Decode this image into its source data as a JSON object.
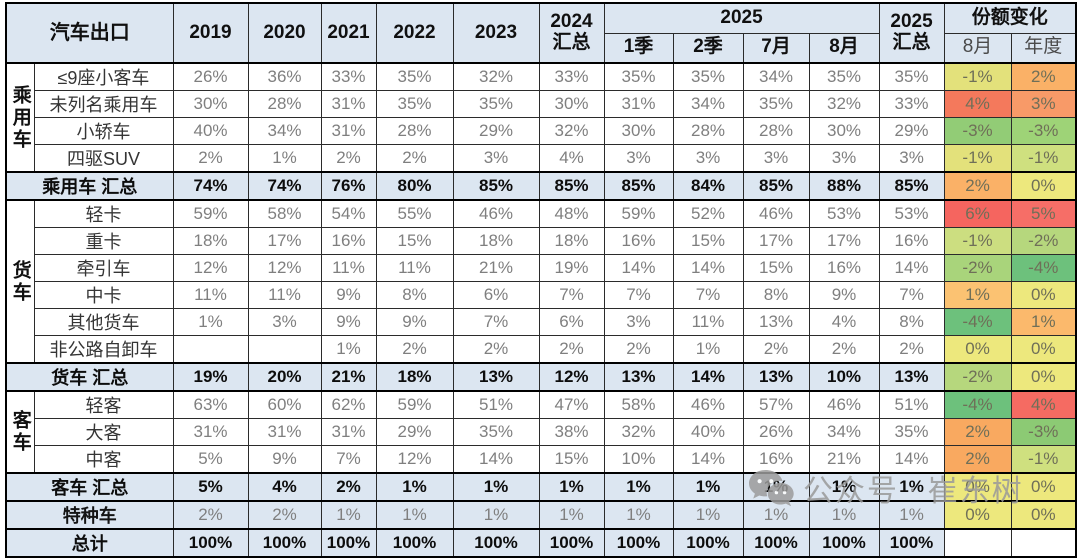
{
  "chart_data": {
    "type": "table",
    "title": "汽车出口",
    "header": {
      "years": [
        "2019",
        "2020",
        "2021",
        "2022",
        "2023"
      ],
      "total2024_line1": "2024",
      "total2024_line2": "汇总",
      "group2025": "2025",
      "sub2025": [
        "1季",
        "2季",
        "7月",
        "8月"
      ],
      "total2025_line1": "2025",
      "total2025_line2": "汇总",
      "share_change": "份额变化",
      "share_subs": [
        "8月",
        "年度"
      ]
    },
    "columns": [
      "2019",
      "2020",
      "2021",
      "2022",
      "2023",
      "2024汇总",
      "2025 1季",
      "2025 2季",
      "2025 7月",
      "2025 8月",
      "2025汇总",
      "份额变化 8月",
      "份额变化 年度"
    ],
    "rows": [
      {
        "kind": "data",
        "group": "乘用车",
        "span": 4,
        "label": "≤9座小客车",
        "values": [
          "26%",
          "36%",
          "33%",
          "35%",
          "32%",
          "33%",
          "35%",
          "35%",
          "34%",
          "35%",
          "35%"
        ],
        "changes": [
          {
            "v": "-1%",
            "bg": "#E3E17B"
          },
          {
            "v": "2%",
            "bg": "#FAB167"
          }
        ]
      },
      {
        "kind": "data",
        "label": "未列名乘用车",
        "values": [
          "30%",
          "28%",
          "31%",
          "35%",
          "35%",
          "30%",
          "31%",
          "34%",
          "35%",
          "32%",
          "33%"
        ],
        "changes": [
          {
            "v": "4%",
            "bg": "#F4795C"
          },
          {
            "v": "3%",
            "bg": "#F89A68"
          }
        ]
      },
      {
        "kind": "data",
        "label": "小轿车",
        "values": [
          "40%",
          "34%",
          "31%",
          "28%",
          "29%",
          "32%",
          "30%",
          "28%",
          "28%",
          "30%",
          "29%"
        ],
        "changes": [
          {
            "v": "-3%",
            "bg": "#92CC76"
          },
          {
            "v": "-3%",
            "bg": "#9ED377"
          }
        ]
      },
      {
        "kind": "data",
        "label": "四驱SUV",
        "values": [
          "2%",
          "1%",
          "2%",
          "2%",
          "3%",
          "4%",
          "3%",
          "3%",
          "3%",
          "3%",
          "3%"
        ],
        "changes": [
          {
            "v": "-1%",
            "bg": "#E3E17B"
          },
          {
            "v": "-1%",
            "bg": "#CFE07F"
          }
        ]
      },
      {
        "kind": "summary",
        "label": "乘用车 汇总",
        "values": [
          "74%",
          "74%",
          "76%",
          "80%",
          "85%",
          "85%",
          "85%",
          "84%",
          "85%",
          "88%",
          "85%"
        ],
        "changes": [
          {
            "v": "2%",
            "bg": "#FAB167"
          },
          {
            "v": "0%",
            "bg": "#EDE87D"
          }
        ]
      },
      {
        "kind": "data",
        "group": "货车",
        "span": 6,
        "label": "轻卡",
        "values": [
          "59%",
          "58%",
          "54%",
          "55%",
          "46%",
          "48%",
          "59%",
          "52%",
          "46%",
          "53%",
          "53%"
        ],
        "changes": [
          {
            "v": "6%",
            "bg": "#F5655F"
          },
          {
            "v": "5%",
            "bg": "#F66E67"
          }
        ]
      },
      {
        "kind": "data",
        "label": "重卡",
        "values": [
          "18%",
          "17%",
          "16%",
          "15%",
          "18%",
          "18%",
          "16%",
          "15%",
          "17%",
          "17%",
          "16%"
        ],
        "changes": [
          {
            "v": "-1%",
            "bg": "#CCDE80"
          },
          {
            "v": "-2%",
            "bg": "#B6D77D"
          }
        ]
      },
      {
        "kind": "data",
        "label": "牵引车",
        "values": [
          "12%",
          "12%",
          "11%",
          "11%",
          "21%",
          "19%",
          "14%",
          "14%",
          "15%",
          "16%",
          "14%"
        ],
        "changes": [
          {
            "v": "-2%",
            "bg": "#A9D47B"
          },
          {
            "v": "-4%",
            "bg": "#6DC17C"
          }
        ]
      },
      {
        "kind": "data",
        "label": "中卡",
        "values": [
          "11%",
          "11%",
          "9%",
          "8%",
          "6%",
          "7%",
          "7%",
          "7%",
          "8%",
          "9%",
          "7%"
        ],
        "changes": [
          {
            "v": "1%",
            "bg": "#FBC272"
          },
          {
            "v": "0%",
            "bg": "#EDE87D"
          }
        ]
      },
      {
        "kind": "data",
        "label": "其他货车",
        "values": [
          "1%",
          "3%",
          "9%",
          "9%",
          "7%",
          "6%",
          "3%",
          "11%",
          "13%",
          "4%",
          "8%"
        ],
        "changes": [
          {
            "v": "-4%",
            "bg": "#6DC17C"
          },
          {
            "v": "1%",
            "bg": "#FBB96C"
          }
        ]
      },
      {
        "kind": "data",
        "label": "非公路自卸车",
        "values": [
          "",
          "",
          "1%",
          "2%",
          "2%",
          "2%",
          "2%",
          "1%",
          "2%",
          "2%",
          "2%"
        ],
        "changes": [
          {
            "v": "0%",
            "bg": "#EDE87D"
          },
          {
            "v": "0%",
            "bg": "#EDE87D"
          }
        ]
      },
      {
        "kind": "summary",
        "label": "货车 汇总",
        "values": [
          "19%",
          "20%",
          "21%",
          "18%",
          "13%",
          "12%",
          "13%",
          "14%",
          "13%",
          "10%",
          "13%"
        ],
        "changes": [
          {
            "v": "-2%",
            "bg": "#B6D77D"
          },
          {
            "v": "0%",
            "bg": "#EDE87D"
          }
        ]
      },
      {
        "kind": "data",
        "group": "客车",
        "span": 3,
        "label": "轻客",
        "values": [
          "63%",
          "60%",
          "62%",
          "59%",
          "51%",
          "47%",
          "58%",
          "46%",
          "57%",
          "46%",
          "51%"
        ],
        "changes": [
          {
            "v": "-4%",
            "bg": "#6DC17C"
          },
          {
            "v": "4%",
            "bg": "#F56B62"
          }
        ]
      },
      {
        "kind": "data",
        "label": "大客",
        "values": [
          "31%",
          "31%",
          "31%",
          "29%",
          "35%",
          "38%",
          "32%",
          "40%",
          "26%",
          "34%",
          "35%"
        ],
        "changes": [
          {
            "v": "2%",
            "bg": "#F9A960"
          },
          {
            "v": "-3%",
            "bg": "#8CCA74"
          }
        ]
      },
      {
        "kind": "data",
        "label": "中客",
        "values": [
          "5%",
          "9%",
          "7%",
          "12%",
          "14%",
          "15%",
          "10%",
          "14%",
          "16%",
          "21%",
          "14%"
        ],
        "changes": [
          {
            "v": "2%",
            "bg": "#F9A960"
          },
          {
            "v": "-1%",
            "bg": "#CFE07F"
          }
        ]
      },
      {
        "kind": "summary",
        "label": "客车 汇总",
        "values": [
          "5%",
          "4%",
          "2%",
          "1%",
          "1%",
          "1%",
          "1%",
          "1%",
          "1%",
          "1%",
          "1%"
        ],
        "changes": [
          {
            "v": "0%",
            "bg": "#EDE87D"
          },
          {
            "v": "0%",
            "bg": "#EDE87D"
          }
        ]
      },
      {
        "kind": "special",
        "label": "特种车",
        "values": [
          "2%",
          "2%",
          "1%",
          "1%",
          "1%",
          "1%",
          "1%",
          "1%",
          "1%",
          "1%",
          "1%"
        ],
        "changes": [
          {
            "v": "0%",
            "bg": "#EDE87D"
          },
          {
            "v": "0%",
            "bg": "#EDE87D"
          }
        ]
      },
      {
        "kind": "total",
        "label": "总计",
        "values": [
          "100%",
          "100%",
          "100%",
          "100%",
          "100%",
          "100%",
          "100%",
          "100%",
          "100%",
          "100%",
          "100%"
        ],
        "changes": [
          {
            "v": "",
            "bg": "#FFFFFF"
          },
          {
            "v": "",
            "bg": "#FFFFFF"
          }
        ]
      }
    ]
  },
  "colors": {
    "header_bg": "#DCE6F1",
    "summary_bg": "#DCE6F1",
    "value_text": "#7F7F7F",
    "bold_text": "#0D0D0D",
    "scale_max_red": "#F5655F",
    "scale_mid_yellow": "#EDE87D",
    "scale_min_green": "#6DC17C"
  },
  "watermark": {
    "icon": "wechat-icon",
    "prefix": "公众号",
    "separator": "·",
    "suffix": "崔东树"
  }
}
